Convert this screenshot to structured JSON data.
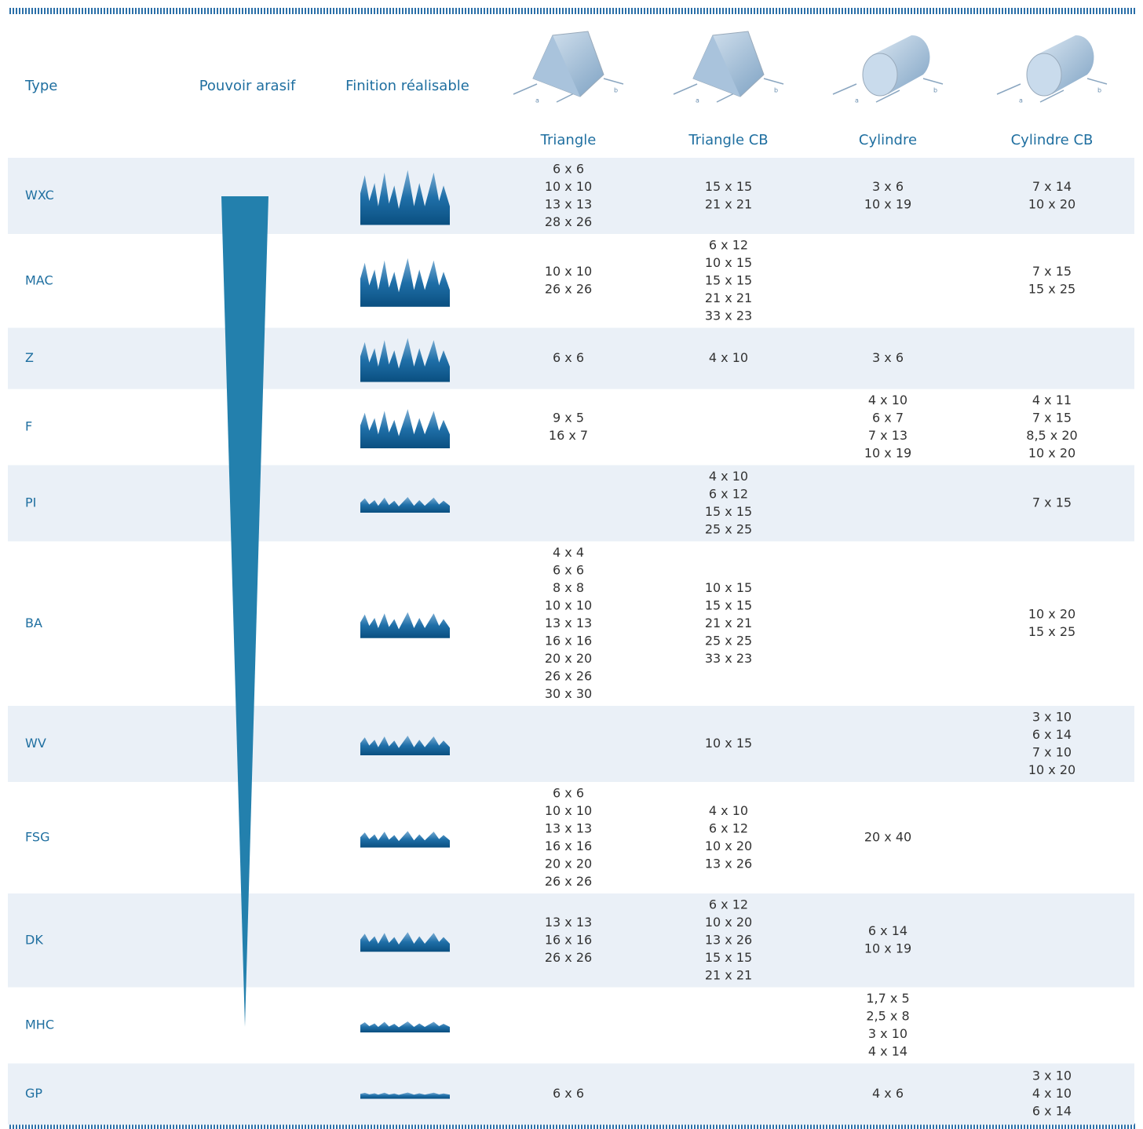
{
  "header": {
    "type": "Type",
    "pouvoir": "Pouvoir arasif",
    "finition": "Finition réalisable",
    "shapes": [
      "Triangle",
      "Triangle CB",
      "Cylindre",
      "Cylindre CB"
    ],
    "dimension_labels": [
      "a",
      "b"
    ]
  },
  "table": {
    "rows": [
      {
        "type": "WXC",
        "cells": [
          [
            "6 x 6",
            "10 x 10",
            "13 x 13",
            "28 x 26"
          ],
          [
            "15 x 15",
            "21 x 21"
          ],
          [
            "3 x 6",
            "10 x 19"
          ],
          [
            "7 x 14",
            "10 x 20"
          ]
        ]
      },
      {
        "type": "MAC",
        "cells": [
          [
            "10 x 10",
            "26 x 26"
          ],
          [
            "6 x 12",
            "10 x 15",
            "15 x 15",
            "21 x 21",
            "33 x 23"
          ],
          [],
          [
            "7 x 15",
            "15 x 25"
          ]
        ]
      },
      {
        "type": "Z",
        "cells": [
          [
            "6 x 6"
          ],
          [
            "4 x 10"
          ],
          [
            "3 x 6"
          ],
          []
        ]
      },
      {
        "type": "F",
        "cells": [
          [
            "9 x 5",
            "16 x 7"
          ],
          [],
          [
            "4 x 10",
            "6 x 7",
            "7 x 13",
            "10 x 19"
          ],
          [
            "4 x 11",
            "7 x 15",
            "8,5 x 20",
            "10 x 20"
          ]
        ]
      },
      {
        "type": "PI",
        "cells": [
          [],
          [
            "4 x 10",
            "6 x 12",
            "15 x 15",
            "25 x 25"
          ],
          [],
          [
            "7 x 15"
          ]
        ]
      },
      {
        "type": "BA",
        "cells": [
          [
            "4 x 4",
            "6 x 6",
            "8 x 8",
            "10 x 10",
            "13 x 13",
            "16 x 16",
            "20 x 20",
            "26 x 26",
            "30 x 30"
          ],
          [
            "10 x 15",
            "15 x 15",
            "21 x 21",
            "25 x 25",
            "33 x 23"
          ],
          [],
          [
            "10 x 20",
            "15 x 25"
          ]
        ]
      },
      {
        "type": "WV",
        "cells": [
          [],
          [
            "10 x 15"
          ],
          [],
          [
            "3 x 10",
            "6 x 14",
            "7 x 10",
            "10 x 20"
          ]
        ]
      },
      {
        "type": "FSG",
        "cells": [
          [
            "6 x 6",
            "10 x 10",
            "13 x 13",
            "16 x 16",
            "20 x 20",
            "26 x 26"
          ],
          [
            "4 x 10",
            "6 x 12",
            "10 x 20",
            "13 x 26"
          ],
          [
            "20 x 40"
          ],
          []
        ]
      },
      {
        "type": "DK",
        "cells": [
          [
            "13 x 13",
            "16 x 16",
            "26 x 26"
          ],
          [
            "6 x 12",
            "10 x 20",
            "13 x 26",
            "15 x 15",
            "21 x 21"
          ],
          [
            "6 x 14",
            "10 x 19"
          ],
          []
        ]
      },
      {
        "type": "MHC",
        "cells": [
          [],
          [],
          [
            "1,7 x 5",
            "2,5 x 8",
            "3 x 10",
            "4 x 14"
          ],
          []
        ]
      },
      {
        "type": "GP",
        "cells": [
          [
            "6 x 6"
          ],
          [],
          [
            "4 x 6"
          ],
          [
            "3 x 10",
            "4 x 10",
            "6 x 14"
          ]
        ]
      }
    ]
  }
}
